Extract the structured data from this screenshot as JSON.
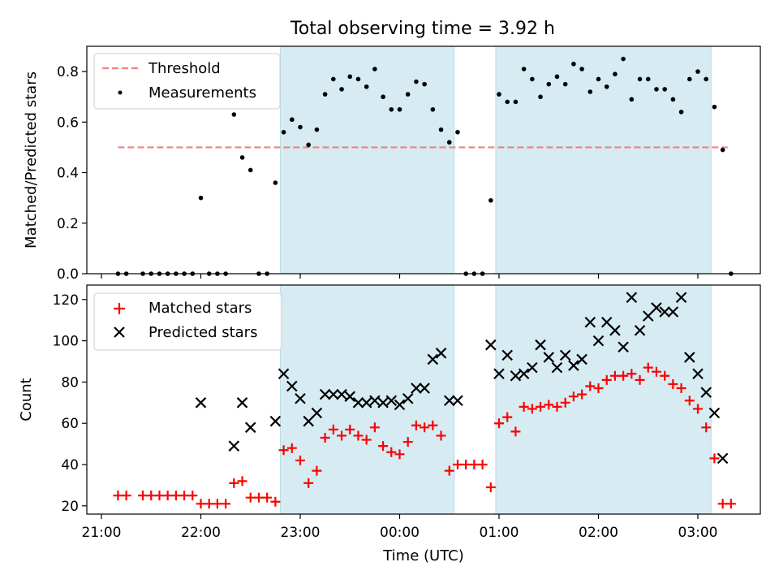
{
  "title": "Total observing time = 3.92 h",
  "chart_data": [
    {
      "type": "scatter",
      "ylabel": "Matched/Predicted stars",
      "ylim": [
        0,
        0.9
      ],
      "yticks": [
        {
          "v": 0,
          "label": "0.0"
        },
        {
          "v": 0.2,
          "label": "0.2"
        },
        {
          "v": 0.4,
          "label": "0.4"
        },
        {
          "v": 0.6,
          "label": "0.6"
        },
        {
          "v": 0.8,
          "label": "0.8"
        }
      ],
      "legend": {
        "placement": "top-left",
        "threshold_label": "Threshold",
        "measurements_label": "Measurements"
      },
      "threshold": {
        "value": 0.5,
        "x_start": "21:10",
        "x_end": "03:18",
        "color": "#f08080"
      },
      "shaded_intervals": [
        [
          "22:48",
          "00:33"
        ],
        [
          "00:58",
          "03:08"
        ]
      ],
      "shade_color": "#add8e6",
      "measurements": [
        [
          "21:10",
          0
        ],
        [
          "21:15",
          0
        ],
        [
          "21:25",
          0
        ],
        [
          "21:30",
          0
        ],
        [
          "21:35",
          0
        ],
        [
          "21:40",
          0
        ],
        [
          "21:45",
          0
        ],
        [
          "21:50",
          0
        ],
        [
          "21:55",
          0
        ],
        [
          "22:00",
          0.3
        ],
        [
          "22:05",
          0
        ],
        [
          "22:10",
          0
        ],
        [
          "22:15",
          0
        ],
        [
          "22:20",
          0.63
        ],
        [
          "22:25",
          0.46
        ],
        [
          "22:30",
          0.41
        ],
        [
          "22:35",
          0
        ],
        [
          "22:40",
          0
        ],
        [
          "22:45",
          0.36
        ],
        [
          "22:50",
          0.56
        ],
        [
          "22:55",
          0.61
        ],
        [
          "23:00",
          0.58
        ],
        [
          "23:05",
          0.51
        ],
        [
          "23:10",
          0.57
        ],
        [
          "23:15",
          0.71
        ],
        [
          "23:20",
          0.77
        ],
        [
          "23:25",
          0.73
        ],
        [
          "23:30",
          0.78
        ],
        [
          "23:35",
          0.77
        ],
        [
          "23:40",
          0.74
        ],
        [
          "23:45",
          0.81
        ],
        [
          "23:50",
          0.7
        ],
        [
          "23:55",
          0.65
        ],
        [
          "00:00",
          0.65
        ],
        [
          "00:05",
          0.71
        ],
        [
          "00:10",
          0.76
        ],
        [
          "00:15",
          0.75
        ],
        [
          "00:20",
          0.65
        ],
        [
          "00:25",
          0.57
        ],
        [
          "00:30",
          0.52
        ],
        [
          "00:35",
          0.56
        ],
        [
          "00:40",
          0
        ],
        [
          "00:45",
          0
        ],
        [
          "00:50",
          0
        ],
        [
          "00:55",
          0.29
        ],
        [
          "01:00",
          0.71
        ],
        [
          "01:05",
          0.68
        ],
        [
          "01:10",
          0.68
        ],
        [
          "01:15",
          0.81
        ],
        [
          "01:20",
          0.77
        ],
        [
          "01:25",
          0.7
        ],
        [
          "01:30",
          0.75
        ],
        [
          "01:35",
          0.78
        ],
        [
          "01:40",
          0.75
        ],
        [
          "01:45",
          0.83
        ],
        [
          "01:50",
          0.81
        ],
        [
          "01:55",
          0.72
        ],
        [
          "02:00",
          0.77
        ],
        [
          "02:05",
          0.74
        ],
        [
          "02:10",
          0.79
        ],
        [
          "02:15",
          0.85
        ],
        [
          "02:20",
          0.69
        ],
        [
          "02:25",
          0.77
        ],
        [
          "02:30",
          0.77
        ],
        [
          "02:35",
          0.73
        ],
        [
          "02:40",
          0.73
        ],
        [
          "02:45",
          0.69
        ],
        [
          "02:50",
          0.64
        ],
        [
          "02:55",
          0.77
        ],
        [
          "03:00",
          0.8
        ],
        [
          "03:05",
          0.77
        ],
        [
          "03:10",
          0.66
        ],
        [
          "03:15",
          0.49
        ],
        [
          "03:20",
          0
        ]
      ]
    },
    {
      "type": "scatter",
      "xlabel": "Time (UTC)",
      "ylabel": "Count",
      "ylim": [
        16,
        127
      ],
      "yticks": [
        20,
        40,
        60,
        80,
        100,
        120
      ],
      "xticks": [
        "21:00",
        "22:00",
        "23:00",
        "00:00",
        "01:00",
        "02:00",
        "03:00"
      ],
      "legend": {
        "placement": "top-left",
        "matched_label": "Matched stars",
        "predicted_label": "Predicted stars"
      },
      "matched_color": "#ff0000",
      "predicted_color": "#000000",
      "matched": [
        [
          "21:10",
          25
        ],
        [
          "21:15",
          25
        ],
        [
          "21:25",
          25
        ],
        [
          "21:30",
          25
        ],
        [
          "21:35",
          25
        ],
        [
          "21:40",
          25
        ],
        [
          "21:45",
          25
        ],
        [
          "21:50",
          25
        ],
        [
          "21:55",
          25
        ],
        [
          "22:00",
          21
        ],
        [
          "22:05",
          21
        ],
        [
          "22:10",
          21
        ],
        [
          "22:15",
          21
        ],
        [
          "22:20",
          31
        ],
        [
          "22:25",
          32
        ],
        [
          "22:30",
          24
        ],
        [
          "22:35",
          24
        ],
        [
          "22:40",
          24
        ],
        [
          "22:45",
          22
        ],
        [
          "22:50",
          47
        ],
        [
          "22:55",
          48
        ],
        [
          "23:00",
          42
        ],
        [
          "23:05",
          31
        ],
        [
          "23:10",
          37
        ],
        [
          "23:15",
          53
        ],
        [
          "23:20",
          57
        ],
        [
          "23:25",
          54
        ],
        [
          "23:30",
          57
        ],
        [
          "23:35",
          54
        ],
        [
          "23:40",
          52
        ],
        [
          "23:45",
          58
        ],
        [
          "23:50",
          49
        ],
        [
          "23:55",
          46
        ],
        [
          "00:00",
          45
        ],
        [
          "00:05",
          51
        ],
        [
          "00:10",
          59
        ],
        [
          "00:15",
          58
        ],
        [
          "00:20",
          59
        ],
        [
          "00:25",
          54
        ],
        [
          "00:30",
          37
        ],
        [
          "00:35",
          40
        ],
        [
          "00:40",
          40
        ],
        [
          "00:45",
          40
        ],
        [
          "00:50",
          40
        ],
        [
          "00:55",
          29
        ],
        [
          "01:00",
          60
        ],
        [
          "01:05",
          63
        ],
        [
          "01:10",
          56
        ],
        [
          "01:15",
          68
        ],
        [
          "01:20",
          67
        ],
        [
          "01:25",
          68
        ],
        [
          "01:30",
          69
        ],
        [
          "01:35",
          68
        ],
        [
          "01:40",
          70
        ],
        [
          "01:45",
          73
        ],
        [
          "01:50",
          74
        ],
        [
          "01:55",
          78
        ],
        [
          "02:00",
          77
        ],
        [
          "02:05",
          81
        ],
        [
          "02:10",
          83
        ],
        [
          "02:15",
          83
        ],
        [
          "02:20",
          84
        ],
        [
          "02:25",
          81
        ],
        [
          "02:30",
          87
        ],
        [
          "02:35",
          85
        ],
        [
          "02:40",
          83
        ],
        [
          "02:45",
          79
        ],
        [
          "02:50",
          77
        ],
        [
          "02:55",
          71
        ],
        [
          "03:00",
          67
        ],
        [
          "03:05",
          58
        ],
        [
          "03:10",
          43
        ],
        [
          "03:15",
          21
        ],
        [
          "03:20",
          21
        ]
      ],
      "predicted": [
        [
          "22:00",
          70
        ],
        [
          "22:20",
          49
        ],
        [
          "22:25",
          70
        ],
        [
          "22:30",
          58
        ],
        [
          "22:45",
          61
        ],
        [
          "22:50",
          84
        ],
        [
          "22:55",
          78
        ],
        [
          "23:00",
          72
        ],
        [
          "23:05",
          61
        ],
        [
          "23:10",
          65
        ],
        [
          "23:15",
          74
        ],
        [
          "23:20",
          74
        ],
        [
          "23:25",
          74
        ],
        [
          "23:30",
          73
        ],
        [
          "23:35",
          70
        ],
        [
          "23:40",
          70
        ],
        [
          "23:45",
          71
        ],
        [
          "23:50",
          70
        ],
        [
          "23:55",
          71
        ],
        [
          "00:00",
          69
        ],
        [
          "00:05",
          72
        ],
        [
          "00:10",
          77
        ],
        [
          "00:15",
          77
        ],
        [
          "00:20",
          91
        ],
        [
          "00:25",
          94
        ],
        [
          "00:30",
          71
        ],
        [
          "00:35",
          71
        ],
        [
          "00:55",
          98
        ],
        [
          "01:00",
          84
        ],
        [
          "01:05",
          93
        ],
        [
          "01:10",
          83
        ],
        [
          "01:15",
          84
        ],
        [
          "01:20",
          87
        ],
        [
          "01:25",
          98
        ],
        [
          "01:30",
          92
        ],
        [
          "01:35",
          87
        ],
        [
          "01:40",
          93
        ],
        [
          "01:45",
          88
        ],
        [
          "01:50",
          91
        ],
        [
          "01:55",
          109
        ],
        [
          "02:00",
          100
        ],
        [
          "02:05",
          109
        ],
        [
          "02:10",
          105
        ],
        [
          "02:15",
          97
        ],
        [
          "02:20",
          121
        ],
        [
          "02:25",
          105
        ],
        [
          "02:30",
          112
        ],
        [
          "02:35",
          116
        ],
        [
          "02:40",
          114
        ],
        [
          "02:45",
          114
        ],
        [
          "02:50",
          121
        ],
        [
          "02:55",
          92
        ],
        [
          "03:00",
          84
        ],
        [
          "03:05",
          75
        ],
        [
          "03:10",
          65
        ],
        [
          "03:15",
          43
        ]
      ]
    }
  ]
}
